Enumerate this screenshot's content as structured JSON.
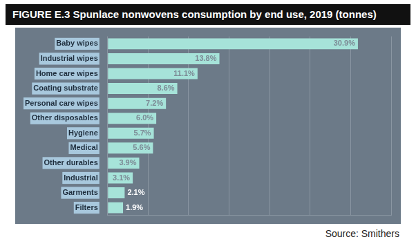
{
  "chart_data": {
    "type": "bar",
    "title": "FIGURE E.3 Spunlace nonwovens consumption by end use, 2019 (tonnes)",
    "source": "Source: Smithers",
    "categories": [
      "Baby wipes",
      "Industrial wipes",
      "Home care wipes",
      "Coating substrate",
      "Personal care wipes",
      "Other disposables",
      "Hygiene",
      "Medical",
      "Other durables",
      "Industrial",
      "Garments",
      "Filters"
    ],
    "values": [
      30.9,
      13.8,
      11.1,
      8.6,
      7.2,
      6.0,
      5.7,
      5.6,
      3.9,
      3.1,
      2.1,
      1.9
    ],
    "value_labels": [
      "30.9%",
      "13.8%",
      "11.1%",
      "8.6%",
      "7.2%",
      "6.0%",
      "5.7%",
      "5.6%",
      "3.9%",
      "3.1%",
      "2.1%",
      "1.9%"
    ],
    "color": "#a6e3d9",
    "orientation": "horizontal",
    "xlim": [
      0,
      35
    ],
    "xticks": [
      0,
      5,
      10,
      15,
      20,
      25,
      30,
      35
    ],
    "grid": true,
    "data_labels": true,
    "tick_labels": "y"
  }
}
